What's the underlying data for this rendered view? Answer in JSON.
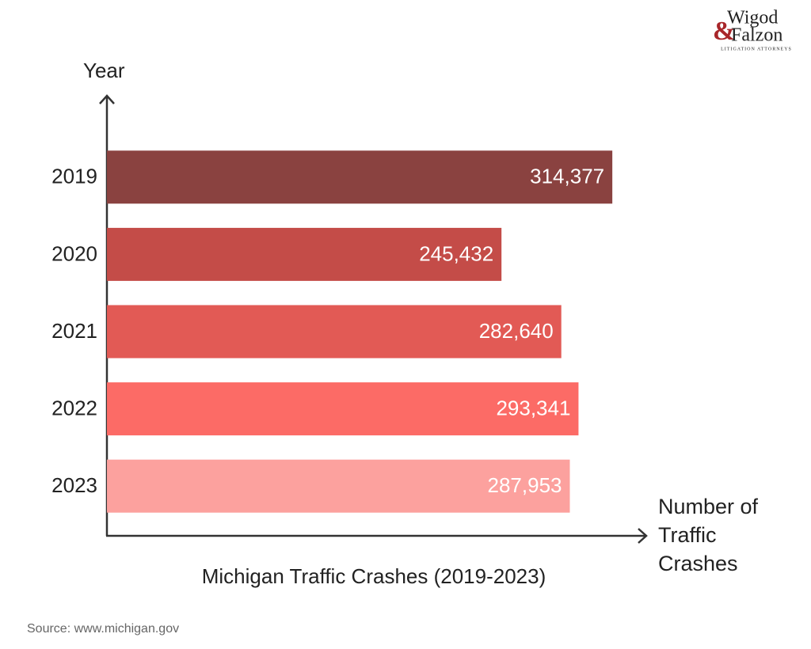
{
  "chart_data": {
    "type": "bar",
    "orientation": "horizontal",
    "title": "Michigan Traffic Crashes (2019-2023)",
    "y_label": "Year",
    "x_label": "Number of Traffic Crashes",
    "source": "Source: www.michigan.gov",
    "categories": [
      "2019",
      "2020",
      "2021",
      "2022",
      "2023"
    ],
    "values": [
      314377,
      245432,
      282640,
      293341,
      287953
    ],
    "value_labels": [
      "314,377",
      "245,432",
      "282,640",
      "293,341",
      "287,953"
    ],
    "colors": [
      "#8a4240",
      "#c44c48",
      "#e25a55",
      "#fc6b66",
      "#fca19e"
    ],
    "xlim": [
      0,
      335000
    ]
  },
  "logo": {
    "line1": "Wigod",
    "ampersand": "&",
    "line2": "Falzon",
    "tagline": "LITIGATION ATTORNEYS"
  }
}
